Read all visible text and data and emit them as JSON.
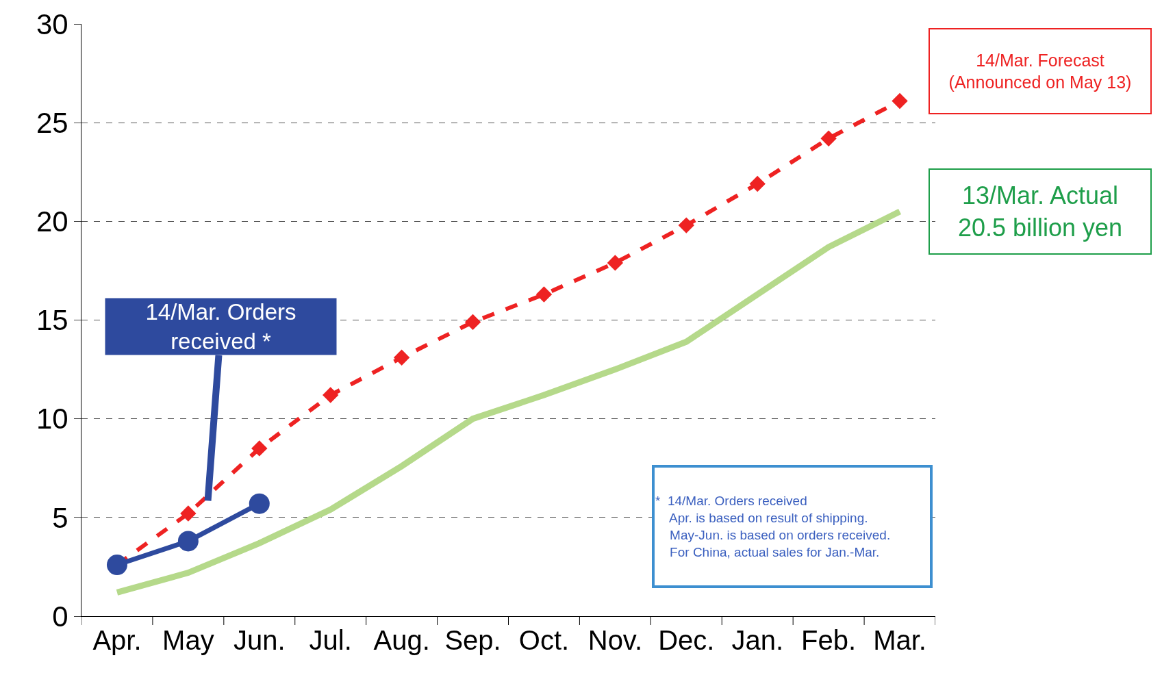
{
  "chart_data": {
    "type": "line",
    "categories": [
      "Apr.",
      "May",
      "Jun.",
      "Jul.",
      "Aug.",
      "Sep.",
      "Oct.",
      "Nov.",
      "Dec.",
      "Jan.",
      "Feb.",
      "Mar."
    ],
    "series": [
      {
        "color": "#b5d98a",
        "line_style": "solid",
        "marker": "none",
        "values": [
          1.2,
          2.2,
          3.7,
          5.4,
          7.6,
          10.0,
          11.2,
          12.5,
          13.9,
          16.3,
          18.7,
          20.5
        ]
      },
      {
        "color": "#ee2222",
        "line_style": "dashed",
        "marker": "diamond",
        "values": [
          2.6,
          5.2,
          8.5,
          11.2,
          13.1,
          14.9,
          16.3,
          17.9,
          19.8,
          21.9,
          24.2,
          26.1
        ]
      },
      {
        "color": "#2e4a9e",
        "line_style": "solid",
        "marker": "circle",
        "values": [
          2.6,
          3.8,
          5.7,
          null,
          null,
          null,
          null,
          null,
          null,
          null,
          null,
          null
        ]
      }
    ],
    "ylim": [
      0,
      30
    ],
    "yticks": [
      0,
      5,
      10,
      15,
      20,
      25,
      30
    ],
    "grid": "y",
    "annotations": [
      "14/Mar. Forecast\n(Announced on May 13)",
      "13/Mar. Actual\n20.5 billion yen",
      "14/Mar. Orders\nreceived *",
      "*  14/Mar. Orders received\n    Apr. is based on result of shipping.\n    May-Jun. is based on orders received.\n    For China, actual sales for Jan.-Mar."
    ]
  }
}
